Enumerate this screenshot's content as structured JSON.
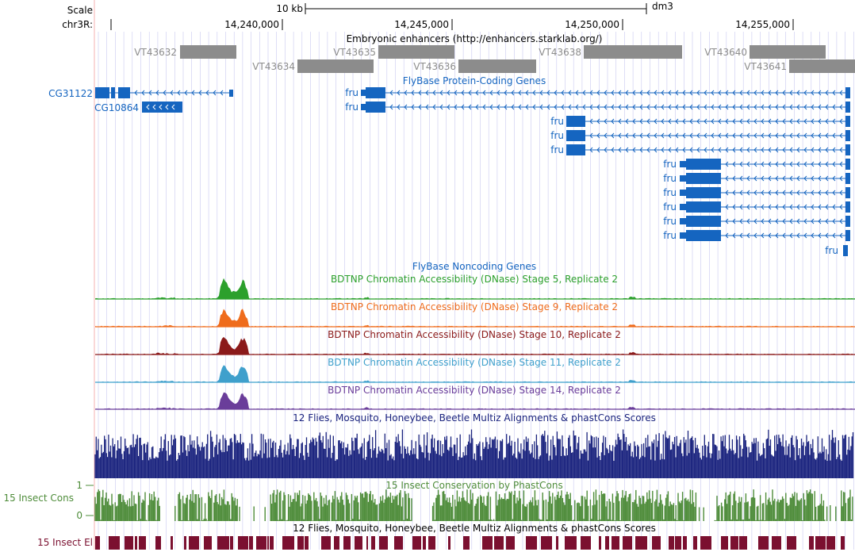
{
  "ruler": {
    "scale_label": "Scale",
    "scale_value": "10 kb",
    "assembly": "dm3",
    "chrom_label": "chr3R:",
    "positions": [
      "14,240,000",
      "14,245,000",
      "14,250,000",
      "14,255,000"
    ]
  },
  "tracks": {
    "enhancers": {
      "title": "Embryonic enhancers (http://enhancers.starklab.org/)",
      "items": [
        "VT43632",
        "VT43635",
        "VT43634",
        "VT43636",
        "VT43638",
        "VT43640",
        "VT43641"
      ]
    },
    "flybase_coding": {
      "title": "FlyBase Protein-Coding Genes",
      "genes": [
        "CG31122",
        "CG10864",
        "fru",
        "fru",
        "fru",
        "fru",
        "fru",
        "fru",
        "fru",
        "fru",
        "fru",
        "fru",
        "fru",
        "fru"
      ]
    },
    "flybase_noncoding": {
      "title": "FlyBase Noncoding Genes"
    },
    "dnase": [
      {
        "title": "BDTNP Chromatin Accessibility (DNase) Stage 5, Replicate 2",
        "color": "#2ca02c"
      },
      {
        "title": "BDTNP Chromatin Accessibility (DNase) Stage 9, Replicate 2",
        "color": "#ef6c1c"
      },
      {
        "title": "BDTNP Chromatin Accessibility (DNase) Stage 10, Replicate 2",
        "color": "#8b1a1a"
      },
      {
        "title": "BDTNP Chromatin Accessibility (DNase) Stage 11, Replicate 2",
        "color": "#3fa0cc"
      },
      {
        "title": "BDTNP Chromatin Accessibility (DNase) Stage 14, Replicate 2",
        "color": "#6a3d9a"
      }
    ],
    "multiz": {
      "title": "12 Flies, Mosquito, Honeybee, Beetle Multiz Alignments & phastCons Scores",
      "color": "#1a237e"
    },
    "insect_cons": {
      "title": "15 Insect Conservation by PhastCons",
      "label": "15 Insect Cons",
      "axis_max": "1",
      "axis_min": "0",
      "color": "#4e8c3a"
    },
    "insect_el": {
      "title": "12 Flies, Mosquito, Honeybee, Beetle Multiz Alignments & phastCons Scores",
      "label": "15 Insect El",
      "color": "#7b1030"
    }
  },
  "colors": {
    "gene_blue": "#1565c0",
    "enhancer_gray": "#8c8c8c",
    "grid_blue": "#c8c8f0",
    "margin_pink": "#f4b0b0"
  }
}
